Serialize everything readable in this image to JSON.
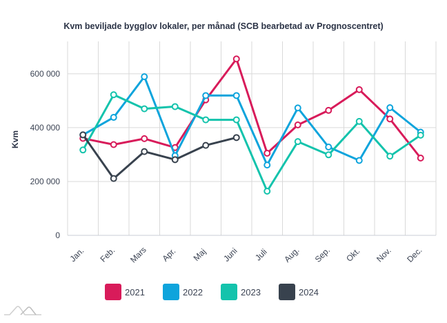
{
  "chart_data": {
    "type": "line",
    "title": "Kvm beviljade bygglov lokaler, per månad (SCB bearbetad av Prognoscentret)",
    "xlabel": "",
    "ylabel": "Kvm",
    "categories": [
      "Jan.",
      "Feb.",
      "Mars",
      "Apr.",
      "Maj",
      "Juni",
      "Juli",
      "Aug.",
      "Sep.",
      "Okt.",
      "Nov.",
      "Dec."
    ],
    "ylim": [
      0,
      720000
    ],
    "yticks": [
      0,
      200000,
      400000,
      600000
    ],
    "ytick_labels": [
      "0",
      "200 000",
      "400 000",
      "600 000"
    ],
    "grid": true,
    "legend_position": "bottom",
    "series": [
      {
        "name": "2021",
        "color": "#d81b5a",
        "values": [
          360000,
          337000,
          359000,
          326000,
          503000,
          655000,
          305000,
          410000,
          464000,
          541000,
          432000,
          287000
        ]
      },
      {
        "name": "2022",
        "color": "#0ea4dc",
        "values": [
          373000,
          438000,
          589000,
          296000,
          519000,
          519000,
          261000,
          473000,
          328000,
          278000,
          474000,
          383000
        ]
      },
      {
        "name": "2023",
        "color": "#14c3ac",
        "values": [
          317000,
          522000,
          470000,
          478000,
          429000,
          429000,
          164000,
          348000,
          299000,
          423000,
          294000,
          372000
        ]
      },
      {
        "name": "2024",
        "color": "#38424e",
        "values": [
          373000,
          211000,
          311000,
          281000,
          334000,
          363000,
          null,
          null,
          null,
          null,
          null,
          null
        ]
      }
    ]
  }
}
